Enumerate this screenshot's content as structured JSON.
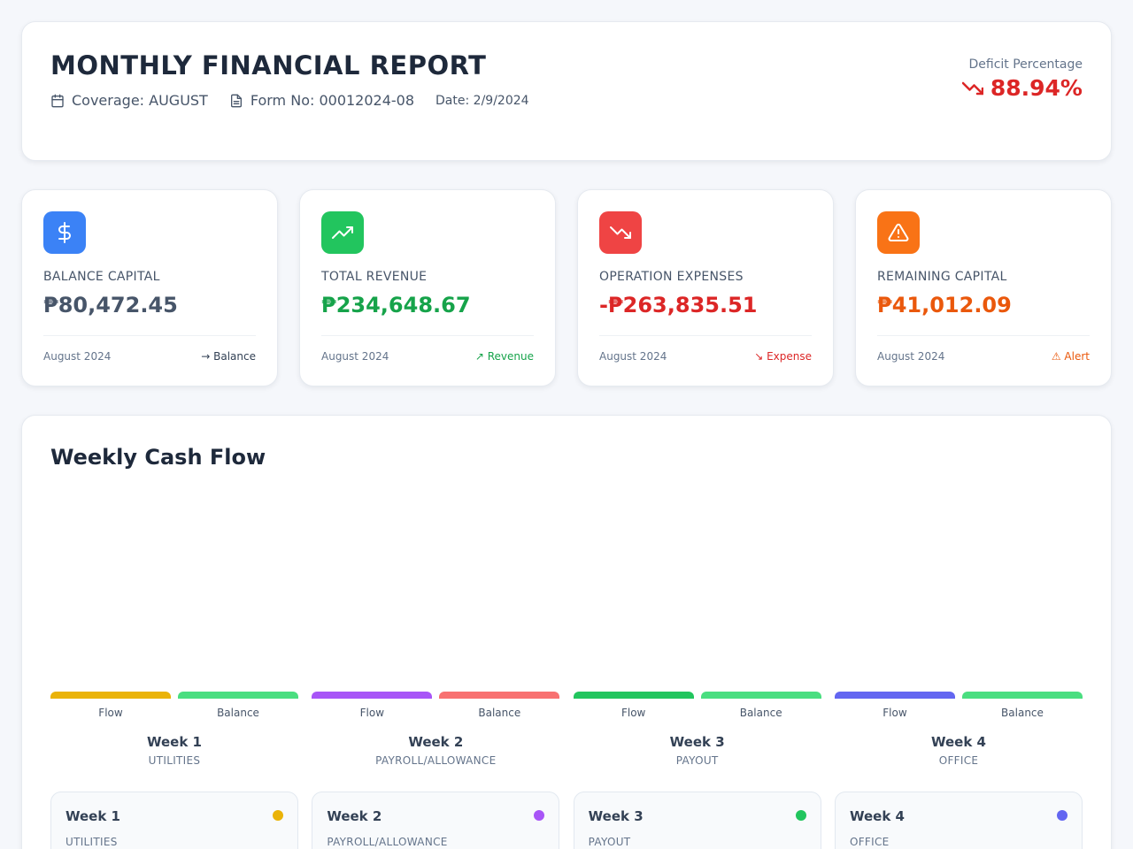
{
  "header": {
    "title": "MONTHLY FINANCIAL REPORT",
    "coverage": "Coverage: AUGUST",
    "form_no": "Form No: 00012024-08",
    "date": "Date: 2/9/2024",
    "deficit_label": "Deficit Percentage",
    "deficit_value": "88.94%"
  },
  "stats": [
    {
      "icon": "dollar-icon",
      "color": "#3b82f6",
      "label": "BALANCE CAPITAL",
      "value": "₱80,472.45",
      "value_color": "#475569",
      "period": "August 2024",
      "tag": "→ Balance",
      "tag_color": "#334155"
    },
    {
      "icon": "trending-up-icon",
      "color": "#22c55e",
      "label": "TOTAL REVENUE",
      "value": "₱234,648.67",
      "value_color": "#16a34a",
      "period": "August 2024",
      "tag": "↗ Revenue",
      "tag_color": "#16a34a"
    },
    {
      "icon": "trending-down-icon",
      "color": "#ef4444",
      "label": "OPERATION EXPENSES",
      "value": "-₱263,835.51",
      "value_color": "#dc2626",
      "period": "August 2024",
      "tag": "↘ Expense",
      "tag_color": "#dc2626"
    },
    {
      "icon": "warning-icon",
      "color": "#f97316",
      "label": "REMAINING CAPITAL",
      "value": "₱41,012.09",
      "value_color": "#ea580c",
      "period": "August 2024",
      "tag": "⚠ Alert",
      "tag_color": "#ea580c"
    }
  ],
  "cashflow": {
    "title": "Weekly Cash Flow",
    "weeks": [
      {
        "name": "Week 1",
        "category": "UTILITIES",
        "flow_label": "Flow",
        "balance_label": "Balance",
        "flow_color": "#eab308",
        "balance_color": "#4ade80",
        "dot_color": "#eab308"
      },
      {
        "name": "Week 2",
        "category": "PAYROLL/ALLOWANCE",
        "flow_label": "Flow",
        "balance_label": "Balance",
        "flow_color": "#a855f7",
        "balance_color": "#f87171",
        "dot_color": "#a855f7"
      },
      {
        "name": "Week 3",
        "category": "PAYOUT",
        "flow_label": "Flow",
        "balance_label": "Balance",
        "flow_color": "#22c55e",
        "balance_color": "#4ade80",
        "dot_color": "#22c55e"
      },
      {
        "name": "Week 4",
        "category": "OFFICE",
        "flow_label": "Flow",
        "balance_label": "Balance",
        "flow_color": "#6366f1",
        "balance_color": "#4ade80",
        "dot_color": "#6366f1"
      }
    ]
  }
}
